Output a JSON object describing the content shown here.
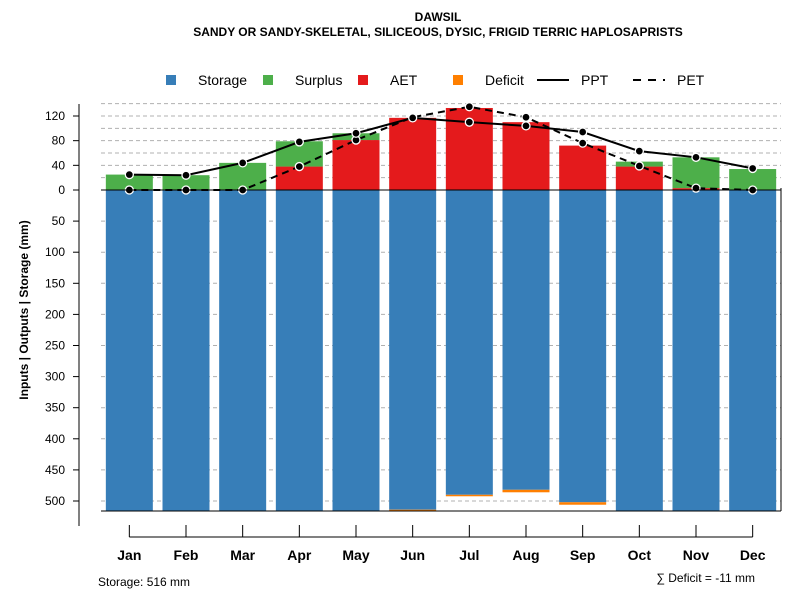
{
  "chart_data": {
    "type": "bar",
    "title": "DAWSIL",
    "subtitle": "SANDY OR SANDY-SKELETAL, SILICEOUS, DYSIC, FRIGID TERRIC HAPLOSAPRISTS",
    "ylabel": "Inputs | Outputs | Storage    (mm)",
    "categories": [
      "Jan",
      "Feb",
      "Mar",
      "Apr",
      "May",
      "Jun",
      "Jul",
      "Aug",
      "Sep",
      "Oct",
      "Nov",
      "Dec"
    ],
    "upper_ticks": [
      0,
      40,
      80,
      120
    ],
    "lower_ticks": [
      50,
      100,
      150,
      200,
      250,
      300,
      350,
      400,
      450,
      500
    ],
    "upper_range": [
      0,
      135
    ],
    "lower_range": [
      0,
      516
    ],
    "series": [
      {
        "name": "Storage",
        "color": "#377EB8",
        "values": [
          516,
          516,
          516,
          516,
          516,
          514,
          490,
          482,
          502,
          516,
          516,
          516
        ]
      },
      {
        "name": "Surplus",
        "color": "#4DAF4A",
        "values": [
          25,
          24,
          44,
          41,
          11,
          0,
          0,
          0,
          0,
          8,
          50,
          34
        ]
      },
      {
        "name": "AET",
        "color": "#E41A1C",
        "values": [
          0,
          0,
          0,
          38,
          81,
          117,
          133,
          110,
          72,
          38,
          3,
          0
        ]
      },
      {
        "name": "Deficit",
        "color": "#FF7F00",
        "values": [
          0,
          0,
          0,
          0,
          0,
          1,
          2,
          4,
          4,
          0,
          0,
          0
        ]
      },
      {
        "name": "PPT",
        "color": "#000000",
        "style": "solid",
        "values": [
          25,
          24,
          44,
          78,
          92,
          117,
          110,
          104,
          94,
          63,
          53,
          35
        ]
      },
      {
        "name": "PET",
        "color": "#000000",
        "style": "dashed",
        "values": [
          0,
          0,
          0,
          38,
          81,
          118,
          135,
          118,
          76,
          39,
          3,
          0
        ]
      }
    ],
    "legend": [
      "Storage",
      "Surplus",
      "AET",
      "Deficit",
      "PPT",
      "PET"
    ],
    "legend_position": "top",
    "grid": true
  },
  "footer": {
    "storage_label": "Storage: 516 mm",
    "deficit_label": "∑ Deficit = -11 mm"
  }
}
